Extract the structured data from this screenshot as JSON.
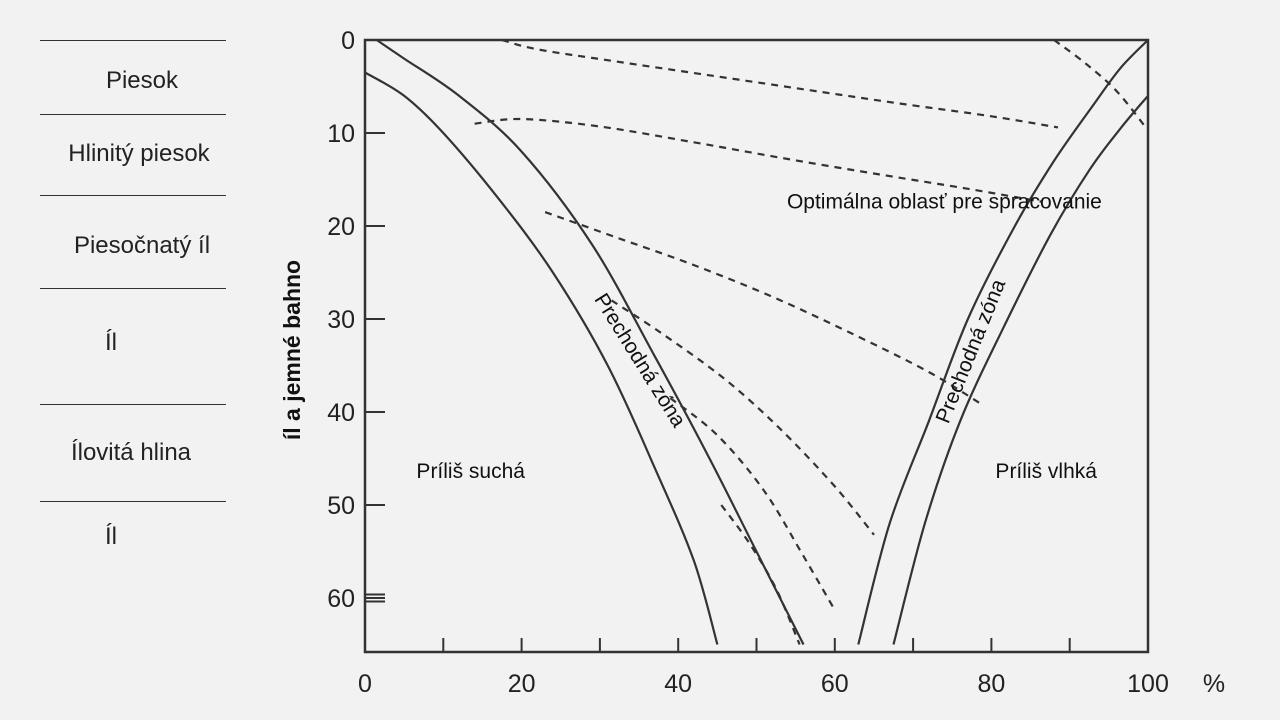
{
  "soil_legend": [
    {
      "label": "Piesok"
    },
    {
      "label": "Hlinitý piesok"
    },
    {
      "label": "Piesočnatý íl"
    },
    {
      "label": "Íl"
    },
    {
      "label": "Ílovitá hlina"
    },
    {
      "label": "Íl"
    }
  ],
  "chart_data": {
    "type": "line",
    "ylabel": "íl a jemné bahno",
    "x_unit": "%",
    "xlim": [
      0,
      100
    ],
    "ylim": [
      0,
      65
    ],
    "y_inverted": true,
    "x_ticks": [
      {
        "value": 0,
        "label": "0"
      },
      {
        "value": 20,
        "label": "20"
      },
      {
        "value": 40,
        "label": "40"
      },
      {
        "value": 60,
        "label": "60"
      },
      {
        "value": 80,
        "label": "80"
      },
      {
        "value": 100,
        "label": "100"
      }
    ],
    "x_minor_ticks": [
      10,
      30,
      50,
      70,
      90
    ],
    "y_ticks": [
      {
        "value": 0,
        "label": "0"
      },
      {
        "value": 10,
        "label": "10"
      },
      {
        "value": 20,
        "label": "20"
      },
      {
        "value": 30,
        "label": "30"
      },
      {
        "value": 40,
        "label": "40"
      },
      {
        "value": 50,
        "label": "50"
      },
      {
        "value": 60,
        "label": "60"
      }
    ],
    "solid_curves": [
      {
        "points": [
          [
            1.5,
            0
          ],
          [
            5,
            2
          ],
          [
            12,
            6
          ],
          [
            20,
            12
          ],
          [
            29,
            22
          ],
          [
            37,
            34
          ],
          [
            44,
            45
          ],
          [
            50,
            55
          ],
          [
            56,
            65
          ]
        ]
      },
      {
        "points": [
          [
            0,
            3.5
          ],
          [
            5,
            6
          ],
          [
            10,
            10
          ],
          [
            17,
            17
          ],
          [
            24,
            25
          ],
          [
            31,
            35
          ],
          [
            37,
            46
          ],
          [
            42,
            56
          ],
          [
            45,
            65
          ]
        ]
      },
      {
        "points": [
          [
            100,
            0
          ],
          [
            96.5,
            3
          ],
          [
            93,
            7
          ],
          [
            88,
            13
          ],
          [
            83,
            20
          ],
          [
            77,
            30
          ],
          [
            72,
            41
          ],
          [
            67,
            52
          ],
          [
            63,
            65
          ]
        ]
      },
      {
        "points": [
          [
            100,
            6
          ],
          [
            96.5,
            9.5
          ],
          [
            92.5,
            14
          ],
          [
            87.5,
            21
          ],
          [
            81.5,
            31
          ],
          [
            76,
            41
          ],
          [
            71.5,
            52
          ],
          [
            67.5,
            65
          ]
        ]
      }
    ],
    "dashed_curves": [
      {
        "points": [
          [
            17.5,
            0
          ],
          [
            22,
            1
          ],
          [
            32,
            2.3
          ],
          [
            44,
            3.8
          ],
          [
            56,
            5.3
          ],
          [
            68,
            6.8
          ],
          [
            80,
            8.2
          ],
          [
            88.5,
            9.4
          ]
        ]
      },
      {
        "points": [
          [
            14,
            9
          ],
          [
            20,
            8.5
          ],
          [
            30,
            9.3
          ],
          [
            42,
            11
          ],
          [
            54,
            12.8
          ],
          [
            66,
            14.5
          ],
          [
            77,
            16
          ],
          [
            86.5,
            17.4
          ]
        ]
      },
      {
        "points": [
          [
            23,
            18.5
          ],
          [
            32,
            21.2
          ],
          [
            42,
            24.2
          ],
          [
            52,
            27.6
          ],
          [
            62,
            31.5
          ],
          [
            72,
            35.7
          ],
          [
            79,
            39.3
          ]
        ]
      },
      {
        "points": [
          [
            31.5,
            28
          ],
          [
            38,
            31.6
          ],
          [
            46,
            36.5
          ],
          [
            53,
            41.8
          ],
          [
            60,
            48
          ],
          [
            65,
            53.2
          ]
        ]
      },
      {
        "points": [
          [
            39,
            38.5
          ],
          [
            45,
            42.5
          ],
          [
            51,
            48.5
          ],
          [
            56,
            55.5
          ],
          [
            60,
            61.3
          ]
        ]
      },
      {
        "points": [
          [
            45.5,
            50
          ],
          [
            49,
            54
          ],
          [
            52.5,
            59
          ],
          [
            55.5,
            65
          ]
        ]
      },
      {
        "points": [
          [
            88,
            0
          ],
          [
            92,
            2.5
          ],
          [
            96,
            5.5
          ],
          [
            99.8,
            9.5
          ]
        ]
      }
    ],
    "annotations": [
      {
        "text": "Optimálna oblasť pre spracovanie",
        "x": 74,
        "y": 17.5,
        "rotation": 0
      },
      {
        "text": "Príliš suchá",
        "x": 13.5,
        "y": 46.5,
        "rotation": 0
      },
      {
        "text": "Príliš vlhká",
        "x": 87,
        "y": 46.5,
        "rotation": 0
      },
      {
        "text": "Prechodná zóna",
        "x": 35,
        "y": 34.5,
        "rotation": 58
      },
      {
        "text": "Prechodná zóna",
        "x": 77.5,
        "y": 33.5,
        "rotation": -68
      }
    ]
  },
  "colors": {
    "background": "#f2f2f2",
    "ink": "#333333"
  }
}
